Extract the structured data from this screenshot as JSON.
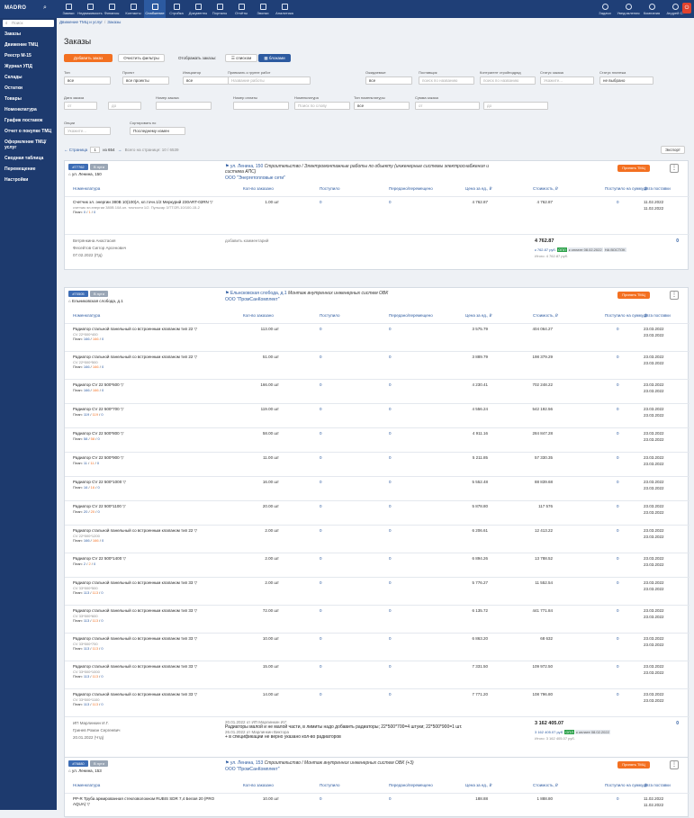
{
  "app": {
    "logo": "MADRO"
  },
  "nav": [
    {
      "label": "Заявки"
    },
    {
      "label": "Недвижимость"
    },
    {
      "label": "Финансы"
    },
    {
      "label": "Контакты"
    },
    {
      "label": "Снабжение"
    },
    {
      "label": "Стройка"
    },
    {
      "label": "Документы"
    },
    {
      "label": "Порталы"
    },
    {
      "label": "Отчёты"
    },
    {
      "label": "Звонки"
    },
    {
      "label": "Аналитика"
    }
  ],
  "right_nav": [
    {
      "label": "Задачи"
    },
    {
      "label": "Уведомления"
    },
    {
      "label": "Компания"
    },
    {
      "label": "Андрей С."
    }
  ],
  "sidebar": {
    "search_placeholder": "Поиск",
    "items": [
      {
        "label": "Заказы"
      },
      {
        "label": "Движение ТМЦ"
      },
      {
        "label": "Реестр М-15"
      },
      {
        "label": "Журнал УПД"
      },
      {
        "label": "Склады"
      },
      {
        "label": "Остатки"
      },
      {
        "label": "Товары"
      },
      {
        "label": "Номенклатура"
      },
      {
        "label": "График поставок"
      },
      {
        "label": "Отчет о покупке ТМЦ"
      },
      {
        "label": "Оформление ТМЦ/ услуг"
      },
      {
        "label": "Сводная таблица"
      },
      {
        "label": "Перемещение"
      },
      {
        "label": "Настройки"
      }
    ]
  },
  "breadcrumbs": [
    "Движение ТМЦ и услуг",
    "Заказы"
  ],
  "page_title": "Заказы",
  "toolbar": {
    "add": "Добавить заказ",
    "clear": "Очистить фильтры",
    "display": "Отображать заказы:",
    "list": "списком",
    "blocks": "блоками"
  },
  "filters": [
    {
      "label": "Тип",
      "value": "все"
    },
    {
      "label": "Проект",
      "value": "все проекты"
    },
    {
      "label": "Инициатор",
      "value": "все"
    },
    {
      "label": "Привязать к группе работ",
      "value": "Название работы"
    },
    {
      "label": "Ожидаемые",
      "value": "все"
    },
    {
      "label": "Поставщик",
      "value": "поиск по названию"
    },
    {
      "label": "Контрагент стройподряд",
      "value": "поиск по названию"
    },
    {
      "label": "Статус заказа",
      "value": "Укажите..."
    },
    {
      "label": "Статус платежа",
      "value": "не выбрано"
    },
    {
      "label": "Дата заказа",
      "value": "от"
    },
    {
      "label": "",
      "value": "до"
    },
    {
      "label": "Номер заказа",
      "value": ""
    },
    {
      "label": "Номер оплаты",
      "value": ""
    },
    {
      "label": "Номенклатура",
      "value": "Поиск по слову"
    },
    {
      "label": "Тип номенклатуры",
      "value": "все"
    },
    {
      "label": "Сумма заказа",
      "value": "от"
    },
    {
      "label": "",
      "value": "до"
    },
    {
      "label": "Опции",
      "value": "Укажите..."
    },
    {
      "label": "Сортировать по",
      "value": "Последнему измен"
    }
  ],
  "pager": {
    "prev": "← Страница",
    "page": "1",
    "of": "из 654",
    "next": "→",
    "total": "Всего на странице: 10 / 6539",
    "export": "Экспорт"
  },
  "columns": [
    "Номенклатура",
    "Кол-во заказано",
    "Поступило",
    "Передано/перемещено",
    "Цена за ед., ₽",
    "Стоимость, ₽",
    "Поступило на сумму ₽",
    "Дата поставки"
  ],
  "accept_label": "Принять ТМЦ",
  "orders": [
    {
      "num": "#77762",
      "status": "В пути",
      "addr": "ул. Ленина, 150",
      "project": "ул. Ленина, 150",
      "project_desc": "Строительство / Электромонтажные работы по объекту (инженерные системы электроснабжения и система АПС)",
      "org": "ООО \"Энергетопловые сети\"",
      "items": [
        {
          "name": "Счетчик эл. энергии 380В 10(100)А, кл.точн.1/2 Меркурий 230ART-02RN",
          "sub": "счетчик эл.энергии 380В 10А кл. точности 1/2. Пульсар 3/ТТ/2R-10/100-15-2",
          "plan": [
            "0",
            "1",
            "0"
          ],
          "qty": "1.00 шт",
          "in": "0",
          "moved": "0",
          "price": "4 762.87",
          "cost": "4 762.87",
          "paid": "0",
          "d1": "11.02.2022",
          "d2": "11.02.2022"
        }
      ],
      "people": [
        "Ветрянкина Анастасия",
        "Фесейтов Сиггор Арсенович",
        "07.02.2022 (Пд)"
      ],
      "comment": "добавить комментарий",
      "total": "4 762.87",
      "tags": "к 762.87 руб.",
      "tagg": "ОПЛ",
      "tagd": "к оплате 08.02.2022",
      "tagb": "НА ВОСТОК",
      "itog": "Итого: 4 762.87 руб."
    },
    {
      "num": "#70505",
      "status": "В пути",
      "addr": "Ельниковская слобода, д.1",
      "project": "Ельнсковская слобода, д.1",
      "project_desc": "Монтаж внутренних инженерных систем ОВК",
      "org": "ООО \"ПромСанКомплект\"",
      "items": [
        {
          "name": "Радиатор стальной панельный со встроенным клапаном тип 22",
          "sub": "CV 22*500*400",
          "plan": [
            "166",
            "166",
            "0"
          ],
          "qty": "113.00 шт",
          "in": "0",
          "moved": "0",
          "price": "3 575.79",
          "cost": "404 064.27",
          "paid": "0",
          "d1": "23.03.2022",
          "d2": "23.03.2022"
        },
        {
          "name": "Радиатор стальной панельный со встроенным клапаном тип 22",
          "sub": "CV 22*500*500",
          "plan": [
            "166",
            "166",
            "0"
          ],
          "qty": "51.00 шт",
          "in": "0",
          "moved": "0",
          "price": "3 889.79",
          "cost": "198 379.29",
          "paid": "0",
          "d1": "23.03.2022",
          "d2": "23.03.2022"
        },
        {
          "name": "Радиатор CV 22 500*600",
          "sub": "",
          "plan": [
            "166",
            "166",
            "0"
          ],
          "qty": "166.00 шт",
          "in": "0",
          "moved": "0",
          "price": "4 230.41",
          "cost": "702 248.22",
          "paid": "0",
          "d1": "23.03.2022",
          "d2": "23.03.2022"
        },
        {
          "name": "Радиатор CV 22 500*700",
          "sub": "",
          "plan": [
            "119",
            "119",
            "0"
          ],
          "qty": "119.00 шт",
          "in": "0",
          "moved": "0",
          "price": "4 556.24",
          "cost": "542 192.56",
          "paid": "0",
          "d1": "23.03.2022",
          "d2": "23.03.2022"
        },
        {
          "name": "Радиатор CV 22 500*800",
          "sub": "",
          "plan": [
            "58",
            "58",
            "0"
          ],
          "qty": "58.00 шт",
          "in": "0",
          "moved": "0",
          "price": "4 911.16",
          "cost": "284 847.28",
          "paid": "0",
          "d1": "23.03.2022",
          "d2": "23.03.2022"
        },
        {
          "name": "Радиатор CV 22 500*900",
          "sub": "",
          "plan": [
            "11",
            "11",
            "0"
          ],
          "qty": "11.00 шт",
          "in": "0",
          "moved": "0",
          "price": "5 211.85",
          "cost": "57 330.35",
          "paid": "0",
          "d1": "23.03.2022",
          "d2": "23.03.2022"
        },
        {
          "name": "Радиатор CV 22 500*1000",
          "sub": "",
          "plan": [
            "16",
            "16",
            "0"
          ],
          "qty": "16.00 шт",
          "in": "0",
          "moved": "0",
          "price": "5 552.48",
          "cost": "88 839.68",
          "paid": "0",
          "d1": "23.03.2022",
          "d2": "23.03.2022"
        },
        {
          "name": "Радиатор CV 22 500*1100",
          "sub": "",
          "plan": [
            "20",
            "20",
            "0"
          ],
          "qty": "20.00 шт",
          "in": "0",
          "moved": "0",
          "price": "5 878.80",
          "cost": "117 576",
          "paid": "0",
          "d1": "23.03.2022",
          "d2": "23.03.2022"
        },
        {
          "name": "Радиатор стальной панельный со встроенным клапаном тип 22",
          "sub": "CV 22*500*1200",
          "plan": [
            "166",
            "166",
            "0"
          ],
          "qty": "2.00 шт",
          "in": "0",
          "moved": "0",
          "price": "6 206.61",
          "cost": "12 413.22",
          "paid": "0",
          "d1": "23.03.2022",
          "d2": "23.03.2022"
        },
        {
          "name": "Радиатор CV 22 500*1400",
          "sub": "",
          "plan": [
            "2",
            "2",
            "0"
          ],
          "qty": "2.00 шт",
          "in": "0",
          "moved": "0",
          "price": "6 894.26",
          "cost": "13 788.52",
          "paid": "0",
          "d1": "23.03.2022",
          "d2": "23.03.2022"
        },
        {
          "name": "Радиатор стальной панельный со встроенным клапаном тип 33",
          "sub": "CV 33*500*500",
          "plan": [
            "113",
            "113",
            "0"
          ],
          "qty": "2.00 шт",
          "in": "0",
          "moved": "0",
          "price": "5 776.27",
          "cost": "11 552.54",
          "paid": "0",
          "d1": "23.03.2022",
          "d2": "23.03.2022"
        },
        {
          "name": "Радиатор стальной панельный со встроенным клапаном тип 33",
          "sub": "CV 33*500*600",
          "plan": [
            "113",
            "113",
            "0"
          ],
          "qty": "72.00 шт",
          "in": "0",
          "moved": "0",
          "price": "6 135.72",
          "cost": "441 771.84",
          "paid": "0",
          "d1": "23.03.2022",
          "d2": "23.03.2022"
        },
        {
          "name": "Радиатор стальной панельный со встроенным клапаном тип 33",
          "sub": "CV 33*500*700",
          "plan": [
            "113",
            "113",
            "0"
          ],
          "qty": "10.00 шт",
          "in": "0",
          "moved": "0",
          "price": "6 863.20",
          "cost": "68 632",
          "paid": "0",
          "d1": "23.03.2022",
          "d2": "23.03.2022"
        },
        {
          "name": "Радиатор стальной панельный со встроенным клапаном тип 33",
          "sub": "CV 33*500*1000",
          "plan": [
            "113",
            "113",
            "0"
          ],
          "qty": "15.00 шт",
          "in": "0",
          "moved": "0",
          "price": "7 331.50",
          "cost": "109 972.50",
          "paid": "0",
          "d1": "23.03.2022",
          "d2": "23.03.2022"
        },
        {
          "name": "Радиатор стальной панельный со встроенным клапаном тип 33",
          "sub": "CV 33*500*1100",
          "plan": [
            "113",
            "113",
            "0"
          ],
          "qty": "14.00 шт",
          "in": "0",
          "moved": "0",
          "price": "7 771.20",
          "cost": "108 796.80",
          "paid": "0",
          "d1": "23.03.2022",
          "d2": "23.03.2022"
        }
      ],
      "people": [
        "ИП Марлинкин И.Г.",
        "Гринев Роман Сергеевич",
        "20.01.2022 (Чтд)"
      ],
      "comment_meta": "20.01.2022 от ИП Марлинкин И.Г.",
      "comment": "Радиаторы малой и не малой части, в лимиты надо добавить радиаторы; 22*500*700=4 штуки; 22*500*900=1 шт.",
      "comment_meta2": "26.01.2022 от Марлинкин Виктора",
      "comment2": "+ в спецификации не верно указано кол-во радиаторов",
      "total": "3 162 405.07",
      "tags": "3 162 405.07 руб.",
      "tagg": "ОПЛ",
      "tagd": "к оплате 08.02.2022",
      "itog": "Итого: 3 162 405.07 руб."
    },
    {
      "num": "#76880",
      "status": "В пути",
      "addr": "ул. Ленина, 153",
      "project": "ул. Ленина, 153",
      "project_desc": "Строительство / Монтаж внутренних инженерных систем ОВК (+3)",
      "org": "ООО \"ПромСанКомплект\"",
      "items": [
        {
          "name": "PP-R Труба армированная стекловолокном RUBIS SDR 7,4 Белая 20 (PRO AQUA)",
          "sub": "",
          "plan": [
            "",
            "",
            ""
          ],
          "qty": "10.00 шт",
          "in": "0",
          "moved": "0",
          "price": "188.88",
          "cost": "1 888.80",
          "paid": "0",
          "d1": "11.02.2022",
          "d2": "11.02.2022"
        }
      ]
    }
  ]
}
